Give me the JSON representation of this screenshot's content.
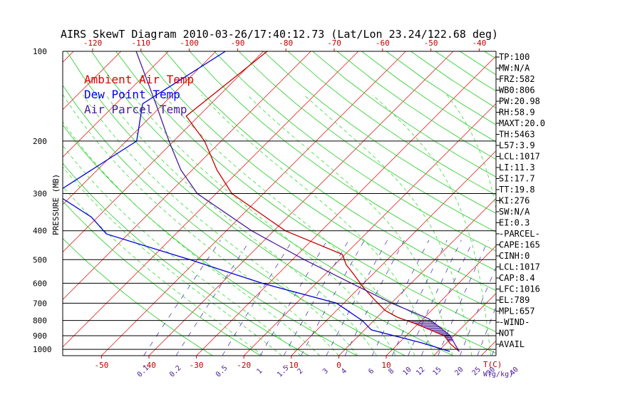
{
  "chart_data": {
    "type": "line",
    "title": "AIRS SkewT Diagram 2010-03-26/17:40:12.73 (Lat/Lon 23.24/122.68 deg)",
    "ylabel": "PRESSURE (MB)",
    "xlabel": "T(C)",
    "mixing_ratio_label": "W(g/kg)",
    "pressure_ticks": [
      100,
      200,
      300,
      400,
      500,
      600,
      700,
      800,
      900,
      1000
    ],
    "top_temperature_ticks": [
      -120,
      -110,
      -100,
      -90,
      -80,
      -70,
      -60,
      -50,
      -40
    ],
    "bottom_temperature_ticks": [
      -50,
      -40,
      -30,
      -20,
      -10,
      0,
      10
    ],
    "mixing_ratio_ticks": [
      "0.1",
      "0.2",
      "0.5",
      "1",
      "1.5",
      "2",
      "3",
      "4",
      "6",
      "8",
      "10",
      "12",
      "15",
      "20",
      "25",
      "30",
      "40"
    ],
    "legend": [
      {
        "label": "Ambient Air Temp",
        "color": "#e00000"
      },
      {
        "label": "Dew Point Temp",
        "color": "#0000ee"
      },
      {
        "label": "Air Parcel Temp",
        "color": "#4b1c9e"
      }
    ],
    "series": [
      {
        "name": "Ambient Air Temp",
        "color": "#c80000",
        "points": [
          {
            "p": 100,
            "t": -79.2
          },
          {
            "p": 165,
            "t": -82.6
          },
          {
            "p": 200,
            "t": -73.5
          },
          {
            "p": 250,
            "t": -64.8
          },
          {
            "p": 300,
            "t": -56.7
          },
          {
            "p": 400,
            "t": -37.6
          },
          {
            "p": 480,
            "t": -20.6
          },
          {
            "p": 520,
            "t": -17.6
          },
          {
            "p": 560,
            "t": -14.0
          },
          {
            "p": 620,
            "t": -9.2
          },
          {
            "p": 680,
            "t": -4.4
          },
          {
            "p": 740,
            "t": 0.2
          },
          {
            "p": 780,
            "t": 4.2
          },
          {
            "p": 820,
            "t": 9.4
          },
          {
            "p": 860,
            "t": 13.8
          },
          {
            "p": 900,
            "t": 18.0
          },
          {
            "p": 960,
            "t": 21.1
          },
          {
            "p": 1016,
            "t": 24.5
          }
        ]
      },
      {
        "name": "Dew Point Temp",
        "color": "#0000e0",
        "points": [
          {
            "p": 100,
            "t": -88.0
          },
          {
            "p": 150,
            "t": -94.4
          },
          {
            "p": 200,
            "t": -87.8
          },
          {
            "p": 240,
            "t": -90.6
          },
          {
            "p": 300,
            "t": -94.0
          },
          {
            "p": 360,
            "t": -81.3
          },
          {
            "p": 410,
            "t": -74.6
          },
          {
            "p": 500,
            "t": -51.6
          },
          {
            "p": 600,
            "t": -31.4
          },
          {
            "p": 700,
            "t": -11.5
          },
          {
            "p": 800,
            "t": -2.5
          },
          {
            "p": 860,
            "t": 1.4
          },
          {
            "p": 900,
            "t": 7.4
          },
          {
            "p": 950,
            "t": 14.6
          },
          {
            "p": 1016,
            "t": 22.5
          }
        ]
      },
      {
        "name": "Air Parcel Temp",
        "color": "#4b1c9e",
        "points": [
          {
            "p": 100,
            "t": -106.8
          },
          {
            "p": 150,
            "t": -91.6
          },
          {
            "p": 200,
            "t": -81.0
          },
          {
            "p": 250,
            "t": -72.4
          },
          {
            "p": 300,
            "t": -64.0
          },
          {
            "p": 400,
            "t": -44.7
          },
          {
            "p": 500,
            "t": -27.5
          },
          {
            "p": 600,
            "t": -12.6
          },
          {
            "p": 700,
            "t": 0.1
          },
          {
            "p": 790,
            "t": 11.2
          },
          {
            "p": 850,
            "t": 15.8
          },
          {
            "p": 900,
            "t": 19.3
          },
          {
            "p": 960,
            "t": 22.0
          },
          {
            "p": 1017,
            "t": 24.5
          }
        ]
      }
    ],
    "cape_hatch": {
      "p_top": 800,
      "p_bottom": 940
    },
    "indices": [
      "TP:100",
      "MW:N/A",
      "FRZ:582",
      "WB0:806",
      "PW:20.98",
      "RH:58.9",
      "MAXT:20.0",
      "TH:5463",
      "L57:3.9",
      "LCL:1017",
      "LI:11.3",
      "SI:17.7",
      "TT:19.8",
      "KI:276",
      "SW:N/A",
      "EI:0.3",
      "-PARCEL-",
      "CAPE:165",
      "CINH:0",
      "LCL:1017",
      "CAP:8.4",
      "LFC:1016",
      "EL:789",
      "MPL:657",
      "-WIND-",
      "NOT",
      "AVAIL"
    ]
  },
  "colors": {
    "isotherm": "#e00000",
    "dry_adiabat": "#22cc22",
    "moist_adiabat": "#33dd33",
    "mixing_ratio": "#3a1fbf",
    "isobar": "#000000"
  }
}
